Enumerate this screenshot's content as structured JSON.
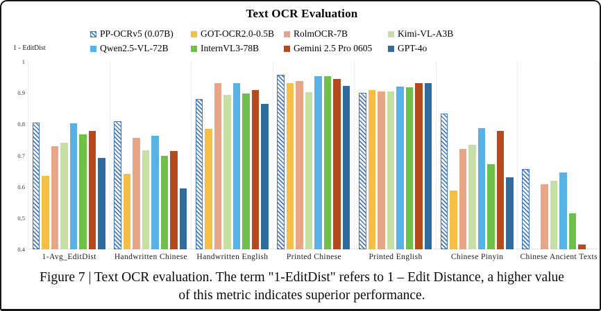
{
  "title": "Text OCR Evaluation",
  "caption": {
    "line1": "Figure 7 | Text OCR evaluation. The term \"1-EditDist\" refers to 1 – Edit Distance, a higher value",
    "line2": "of this metric indicates superior performance."
  },
  "colors": {
    "pp_ocr_hatch_blue": "#4478be",
    "got_yellow": "#f5bf45",
    "rolm_salmon": "#e9a687",
    "kimi_pale_green": "#c6e0a4",
    "qwen_sky_blue": "#58b2e6",
    "internvl_green": "#6fbf4b",
    "gemini_brick": "#b54a1e",
    "gpt4o_steel_blue": "#2f6b9d",
    "separator_gray": "#ececec"
  },
  "chart_data": {
    "type": "bar",
    "title": "Text OCR Evaluation",
    "xlabel": "",
    "ylabel": "1 - EditDist",
    "ylim": [
      0.4,
      1.0
    ],
    "yticks": [
      1,
      0.9,
      0.8,
      0.7,
      0.6,
      0.5,
      0.4
    ],
    "grid": false,
    "legend_position": "top",
    "categories": [
      "1-Avg_EditDist",
      "Handwritten Chinese",
      "Handwritten English",
      "Printed Chinese",
      "Printed English",
      "Chinese Pinyin",
      "Chinese Ancient Texts"
    ],
    "series": [
      {
        "name": "PP-OCRv5 (0.07B)",
        "color": "#4478be",
        "pattern": "hatch",
        "values": [
          0.805,
          0.81,
          0.881,
          0.958,
          0.9,
          0.834,
          0.657
        ]
      },
      {
        "name": "GOT-OCR2.0-0.5B",
        "color": "#f5bf45",
        "pattern": "solid",
        "values": [
          0.635,
          0.641,
          0.785,
          0.932,
          0.909,
          0.588,
          null
        ]
      },
      {
        "name": "RolmOCR-7B",
        "color": "#e9a687",
        "pattern": "solid",
        "values": [
          0.731,
          0.757,
          0.931,
          0.937,
          0.904,
          0.72,
          0.609
        ]
      },
      {
        "name": "Kimi-VL-A3B",
        "color": "#c6e0a4",
        "pattern": "solid",
        "values": [
          0.742,
          0.717,
          0.893,
          0.903,
          0.905,
          0.734,
          0.619
        ]
      },
      {
        "name": "Qwen2.5-VL-72B",
        "color": "#58b2e6",
        "pattern": "solid",
        "values": [
          0.803,
          0.763,
          0.931,
          0.953,
          0.921,
          0.787,
          0.645
        ]
      },
      {
        "name": "InternVL3-78B",
        "color": "#6fbf4b",
        "pattern": "solid",
        "values": [
          0.767,
          0.698,
          0.899,
          0.954,
          0.918,
          0.673,
          0.516
        ]
      },
      {
        "name": "Gemini 2.5 Pro 0605",
        "color": "#b54a1e",
        "pattern": "solid",
        "values": [
          0.779,
          0.714,
          0.91,
          0.945,
          0.931,
          0.779,
          0.415
        ]
      },
      {
        "name": "GPT-4o",
        "color": "#2f6b9d",
        "pattern": "solid",
        "values": [
          0.692,
          0.594,
          0.865,
          0.923,
          0.931,
          0.631,
          null
        ]
      }
    ]
  }
}
